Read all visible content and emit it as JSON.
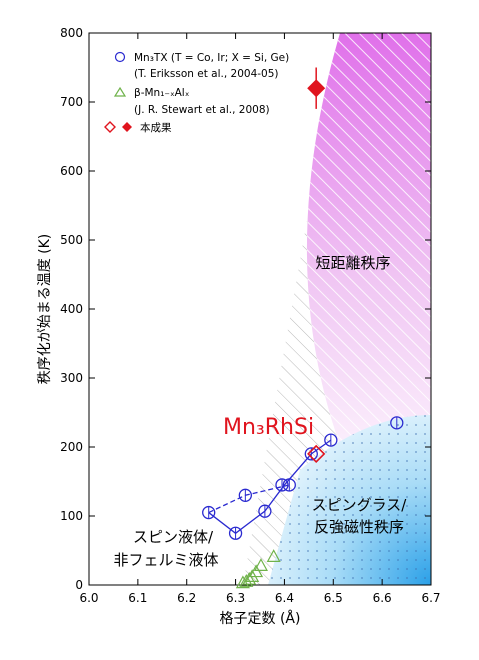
{
  "chart_data": {
    "type": "scatter",
    "xlabel": "格子定数 (Å)",
    "ylabel": "秩序化が始まる温度 (K)",
    "xlim": [
      6.0,
      6.7
    ],
    "ylim": [
      0,
      800
    ],
    "x_ticks": [
      "6.0",
      "6.1",
      "6.2",
      "6.3",
      "6.4",
      "6.5",
      "6.6",
      "6.7"
    ],
    "y_ticks": [
      "0",
      "100",
      "200",
      "300",
      "400",
      "500",
      "600",
      "700",
      "800"
    ],
    "legend_position": "top-left",
    "legend": [
      {
        "label": "Mn₃TX (T = Co, Ir; X = Si, Ge)",
        "sub": "(T. Eriksson et al., 2004-05)"
      },
      {
        "label": "β-Mn₁₋ₓAlₓ",
        "sub": "(J. R. Stewart et al., 2008)"
      },
      {
        "label": "本成果",
        "sub": ""
      }
    ],
    "regions": [
      {
        "label": "短距離秩序",
        "color": "#d880d8"
      },
      {
        "label_line1": "スピングラス/",
        "label_line2": "反強磁性秩序",
        "color": "#78c8f0"
      },
      {
        "label_line1": "スピン液体/",
        "label_line2": "非フェルミ液体"
      }
    ],
    "annotation": "Mn₃RhSi",
    "series": [
      {
        "marker": "circle",
        "color": "#2a2ad0",
        "solid_path": [
          [
            6.245,
            105
          ],
          [
            6.3,
            75
          ],
          [
            6.36,
            107
          ],
          [
            6.4,
            145
          ],
          [
            6.455,
            190
          ],
          [
            6.495,
            210
          ]
        ],
        "dashed_path": [
          [
            6.245,
            105
          ],
          [
            6.32,
            130
          ],
          [
            6.41,
            145
          ]
        ],
        "points": [
          [
            6.245,
            105
          ],
          [
            6.3,
            75
          ],
          [
            6.32,
            130
          ],
          [
            6.36,
            107
          ],
          [
            6.395,
            145
          ],
          [
            6.41,
            145
          ],
          [
            6.455,
            190
          ],
          [
            6.495,
            210
          ],
          [
            6.63,
            235
          ]
        ]
      },
      {
        "marker": "triangle",
        "color": "#6fb24a",
        "points": [
          [
            6.315,
            2
          ],
          [
            6.322,
            4
          ],
          [
            6.328,
            7
          ],
          [
            6.334,
            11
          ],
          [
            6.342,
            18
          ],
          [
            6.352,
            27
          ],
          [
            6.378,
            40
          ]
        ]
      },
      {
        "marker": "diamond-open",
        "color": "#e0141e",
        "points": [
          [
            6.465,
            190
          ]
        ]
      },
      {
        "marker": "diamond-filled",
        "color": "#e0141e",
        "points": [
          [
            6.465,
            720
          ]
        ],
        "error": [
          30
        ]
      }
    ]
  }
}
